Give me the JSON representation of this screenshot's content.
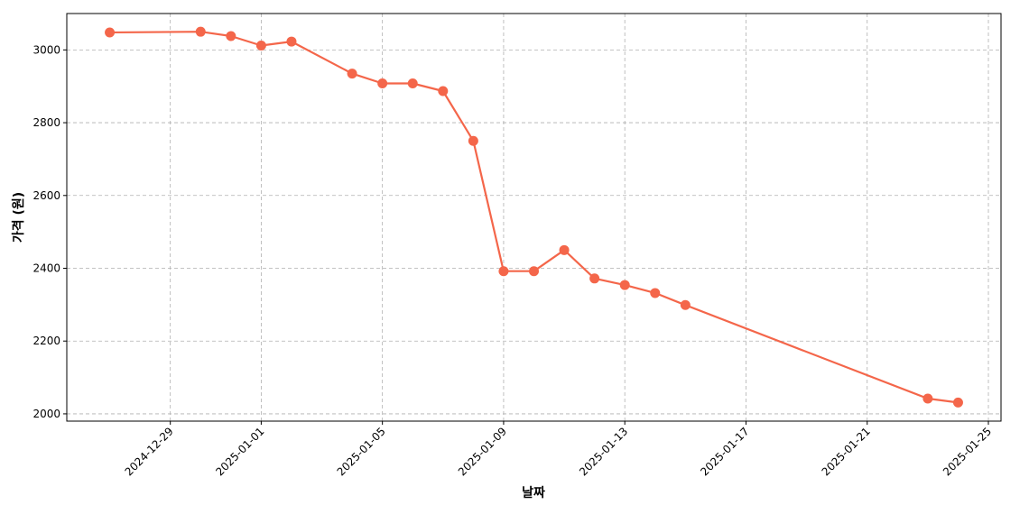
{
  "chart_data": {
    "type": "line",
    "title": "",
    "xlabel": "날짜",
    "ylabel": "가격 (원)",
    "x": [
      "2024-12-27",
      "2024-12-30",
      "2024-12-31",
      "2025-01-01",
      "2025-01-02",
      "2025-01-04",
      "2025-01-05",
      "2025-01-06",
      "2025-01-07",
      "2025-01-08",
      "2025-01-09",
      "2025-01-10",
      "2025-01-11",
      "2025-01-12",
      "2025-01-13",
      "2025-01-14",
      "2025-01-15",
      "2025-01-23",
      "2025-01-24"
    ],
    "series": [
      {
        "values": [
          3048,
          3050,
          3038,
          3012,
          3023,
          2935,
          2908,
          2908,
          2887,
          2750,
          2392,
          2392,
          2450,
          2372,
          2354,
          2332,
          2299,
          2042,
          2031
        ]
      }
    ],
    "xlim": [
      "2024-12-25T14:00",
      "2025-01-25T10:00"
    ],
    "ylim": [
      1980,
      3100
    ],
    "xticks": [
      "2024-12-29",
      "2025-01-01",
      "2025-01-05",
      "2025-01-09",
      "2025-01-13",
      "2025-01-17",
      "2025-01-21",
      "2025-01-25"
    ],
    "yticks": [
      2000,
      2200,
      2400,
      2600,
      2800,
      3000
    ],
    "grid": true,
    "color": "#f4664a"
  }
}
